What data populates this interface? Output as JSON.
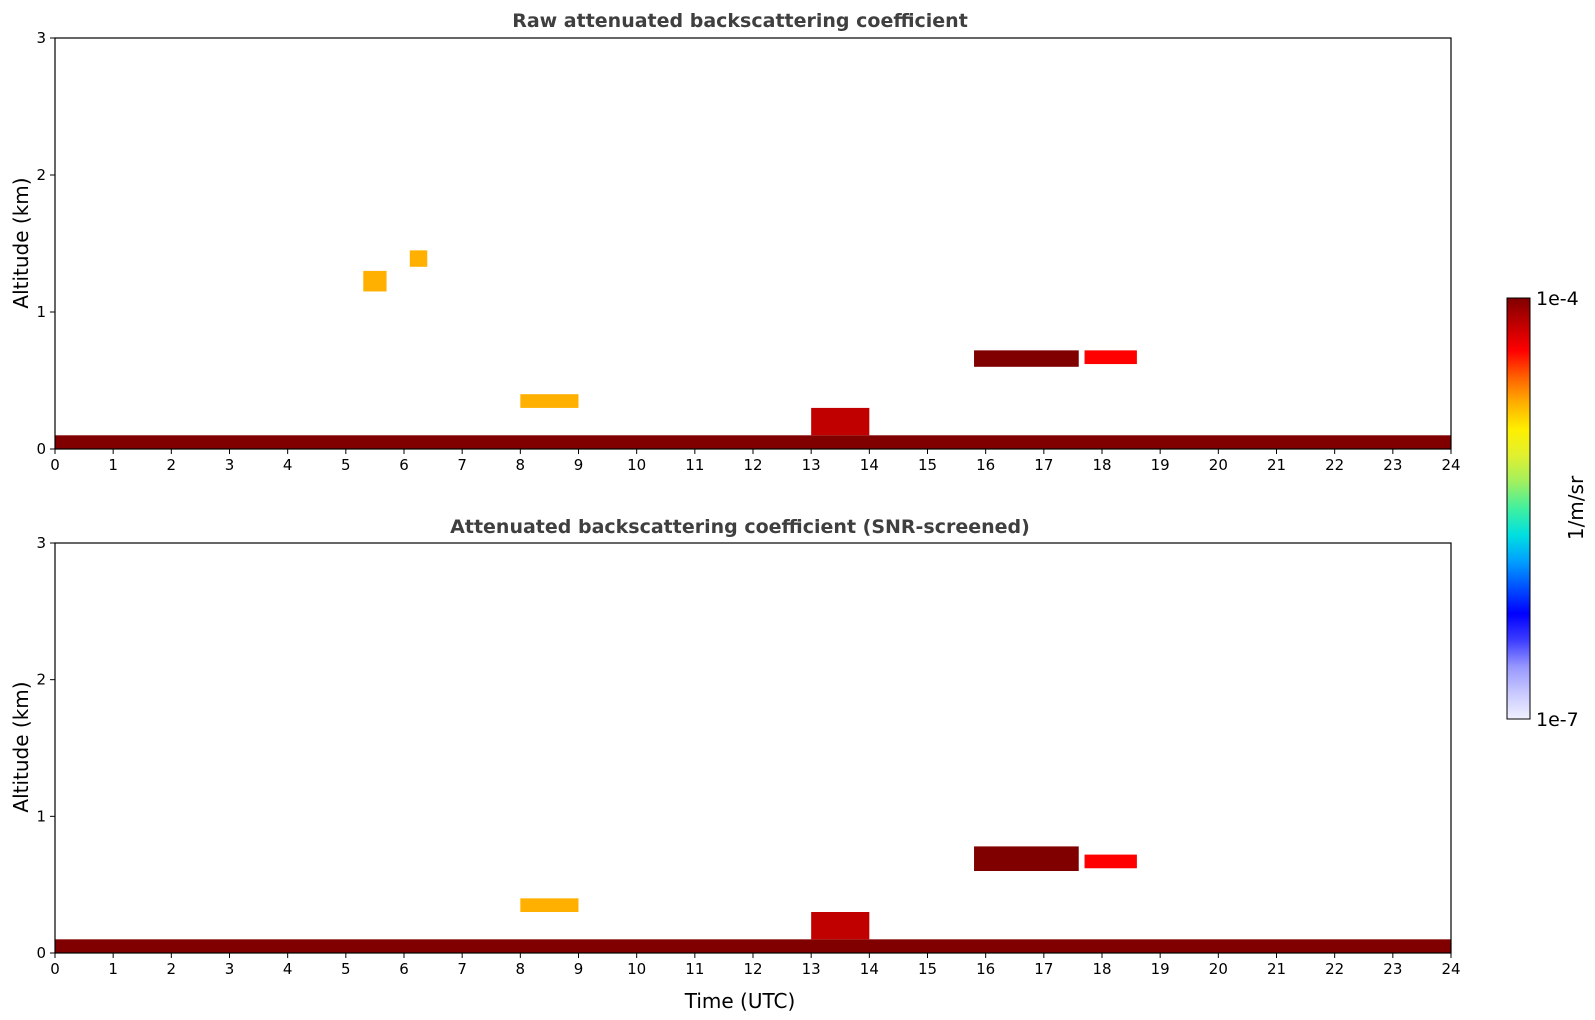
{
  "chart_data": [
    {
      "type": "heatmap",
      "title": "Raw attenuated backscattering coefficient",
      "xlabel": "",
      "ylabel": "Altitude (km)",
      "xlim": [
        0,
        24
      ],
      "ylim": [
        0,
        3
      ],
      "x_ticks": [
        0,
        1,
        2,
        3,
        4,
        5,
        6,
        7,
        8,
        9,
        10,
        11,
        12,
        13,
        14,
        15,
        16,
        17,
        18,
        19,
        20,
        21,
        22,
        23,
        24
      ],
      "y_ticks": [
        0,
        1,
        2,
        3
      ],
      "features": [
        {
          "name": "surface layer",
          "t_start": 0,
          "t_end": 24,
          "alt_min_km": 0.0,
          "alt_max_km": 0.1,
          "level": 1.0
        },
        {
          "name": "aerosol layer",
          "t_start": 8.0,
          "t_end": 9.0,
          "alt_min_km": 0.3,
          "alt_max_km": 0.4,
          "level": 0.78
        },
        {
          "name": "boundary layer top",
          "t_start": 13.0,
          "t_end": 14.0,
          "alt_min_km": 0.1,
          "alt_max_km": 0.3,
          "level": 0.93
        },
        {
          "name": "cloud layer",
          "t_start": 15.8,
          "t_end": 17.6,
          "alt_min_km": 0.6,
          "alt_max_km": 0.72,
          "level": 0.97
        },
        {
          "name": "cloud layer",
          "t_start": 17.7,
          "t_end": 18.6,
          "alt_min_km": 0.62,
          "alt_max_km": 0.72,
          "level": 0.86
        },
        {
          "name": "elevated plume",
          "t_start": 5.3,
          "t_end": 5.7,
          "alt_min_km": 1.15,
          "alt_max_km": 1.3,
          "level": 0.72
        },
        {
          "name": "elevated plume",
          "t_start": 6.1,
          "t_end": 6.4,
          "alt_min_km": 1.33,
          "alt_max_km": 1.45,
          "level": 0.72
        }
      ]
    },
    {
      "type": "heatmap",
      "title": "Attenuated backscattering coefficient (SNR-screened)",
      "xlabel": "Time (UTC)",
      "ylabel": "Altitude (km)",
      "xlim": [
        0,
        24
      ],
      "ylim": [
        0,
        3
      ],
      "x_ticks": [
        0,
        1,
        2,
        3,
        4,
        5,
        6,
        7,
        8,
        9,
        10,
        11,
        12,
        13,
        14,
        15,
        16,
        17,
        18,
        19,
        20,
        21,
        22,
        23,
        24
      ],
      "y_ticks": [
        0,
        1,
        2,
        3
      ],
      "features": [
        {
          "name": "surface layer",
          "t_start": 0,
          "t_end": 24,
          "alt_min_km": 0.0,
          "alt_max_km": 0.1,
          "level": 1.0
        },
        {
          "name": "aerosol layer",
          "t_start": 8.0,
          "t_end": 9.0,
          "alt_min_km": 0.3,
          "alt_max_km": 0.4,
          "level": 0.78
        },
        {
          "name": "boundary layer top",
          "t_start": 13.0,
          "t_end": 14.0,
          "alt_min_km": 0.1,
          "alt_max_km": 0.3,
          "level": 0.93
        },
        {
          "name": "cloud layer",
          "t_start": 15.8,
          "t_end": 17.6,
          "alt_min_km": 0.6,
          "alt_max_km": 0.78,
          "level": 1.0
        },
        {
          "name": "cloud layer",
          "t_start": 17.7,
          "t_end": 18.6,
          "alt_min_km": 0.62,
          "alt_max_km": 0.72,
          "level": 0.86
        }
      ]
    }
  ],
  "colorbar": {
    "label": "1/m/sr",
    "max_label": "1e-4",
    "min_label": "1e-7",
    "colors": [
      "#f0f0ff",
      "#c8c8ff",
      "#9696ff",
      "#3c3cff",
      "#0000ff",
      "#0050ff",
      "#00a0ff",
      "#00e0e0",
      "#40f0a0",
      "#a0f060",
      "#e0f030",
      "#fff000",
      "#ffb000",
      "#ff6000",
      "#ff0000",
      "#c00000",
      "#800000"
    ]
  }
}
